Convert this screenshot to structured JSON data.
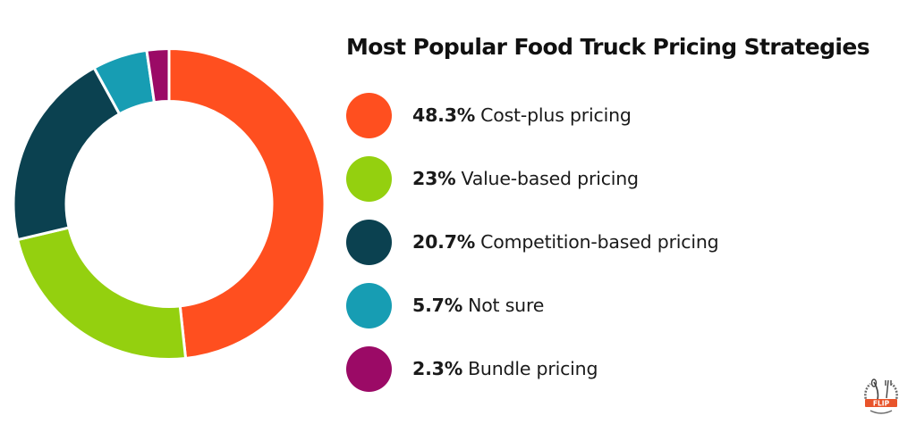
{
  "chart_data": {
    "type": "pie",
    "subtype": "donut",
    "title": "Most Popular Food Truck Pricing Strategies",
    "categories": [
      "Cost-plus pricing",
      "Value-based pricing",
      "Competition-based pricing",
      "Not sure",
      "Bundle pricing"
    ],
    "values": [
      48.3,
      23,
      20.7,
      5.7,
      2.3
    ],
    "value_labels": [
      "48.3%",
      "23%",
      "20.7%",
      "5.7%",
      "2.3%"
    ],
    "unit": "%",
    "colors": [
      "#FF4F1F",
      "#94D00F",
      "#0B4150",
      "#179DB3",
      "#9B0A66"
    ],
    "start_angle": "12 o'clock",
    "direction": "clockwise",
    "legend_position": "right"
  },
  "legend": {
    "items": [
      {
        "value": "48.3%",
        "label": "Cost-plus pricing",
        "color": "#FF4F1F"
      },
      {
        "value": "23%",
        "label": "Value-based pricing",
        "color": "#94D00F"
      },
      {
        "value": "20.7%",
        "label": "Competition-based pricing",
        "color": "#0B4150"
      },
      {
        "value": "5.7%",
        "label": "Not sure",
        "color": "#179DB3"
      },
      {
        "value": "2.3%",
        "label": "Bundle pricing",
        "color": "#9B0A66"
      }
    ]
  },
  "logo": {
    "text": "FLIP",
    "icon": "fork-spoon-logo-icon"
  }
}
